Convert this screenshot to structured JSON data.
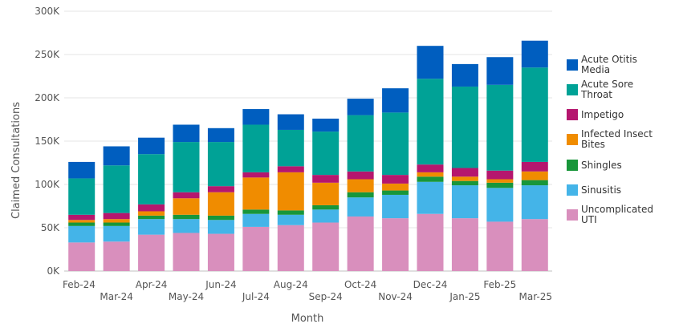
{
  "chart_data": {
    "type": "bar",
    "stacked": true,
    "xlabel": "Month",
    "ylabel": "Claimed Consultations",
    "ylim": [
      0,
      300000
    ],
    "yticks": [
      "0K",
      "50K",
      "100K",
      "150K",
      "200K",
      "250K",
      "300K"
    ],
    "grid": true,
    "legend_position": "right",
    "categories": [
      "Feb-24",
      "Mar-24",
      "Apr-24",
      "May-24",
      "Jun-24",
      "Jul-24",
      "Aug-24",
      "Sep-24",
      "Oct-24",
      "Nov-24",
      "Dec-24",
      "Jan-25",
      "Feb-25",
      "Mar-25"
    ],
    "series": [
      {
        "name": "Uncomplicated UTI",
        "color": "#d98fbd",
        "values": [
          33000,
          34000,
          42000,
          44000,
          43000,
          51000,
          53000,
          56000,
          63000,
          61000,
          66000,
          61000,
          57000,
          60000
        ]
      },
      {
        "name": "Sinusitis",
        "color": "#44b4e8",
        "values": [
          19000,
          18000,
          18000,
          16000,
          16000,
          15000,
          12000,
          15000,
          22000,
          27000,
          37000,
          38000,
          39000,
          39000
        ]
      },
      {
        "name": "Shingles",
        "color": "#18963a",
        "values": [
          4000,
          4000,
          4000,
          5000,
          5000,
          5000,
          5000,
          5000,
          6000,
          5000,
          6000,
          5000,
          6000,
          6000
        ]
      },
      {
        "name": "Infected Insect Bites",
        "color": "#f08c00",
        "values": [
          3000,
          4000,
          5000,
          19000,
          27000,
          37000,
          44000,
          26000,
          15000,
          8000,
          5000,
          5000,
          4000,
          10000
        ]
      },
      {
        "name": "Impetigo",
        "color": "#b5166e",
        "values": [
          6000,
          7000,
          8000,
          7000,
          7000,
          6000,
          7000,
          9000,
          9000,
          10000,
          9000,
          10000,
          10000,
          11000
        ]
      },
      {
        "name": "Acute Sore Throat",
        "color": "#00a296",
        "values": [
          42000,
          55000,
          58000,
          58000,
          51000,
          55000,
          42000,
          50000,
          65000,
          72000,
          99000,
          94000,
          99000,
          109000
        ]
      },
      {
        "name": "Acute Otitis Media",
        "color": "#005ebf",
        "values": [
          19000,
          22000,
          19000,
          20000,
          16000,
          18000,
          18000,
          15000,
          19000,
          28000,
          38000,
          26000,
          32000,
          31000
        ]
      }
    ],
    "legend_order": [
      "Acute Otitis Media",
      "Acute Sore Throat",
      "Impetigo",
      "Infected Insect Bites",
      "Shingles",
      "Sinusitis",
      "Uncomplicated UTI"
    ],
    "legend_labels": [
      [
        "Acute Otitis",
        "Media"
      ],
      [
        "Acute Sore",
        "Throat"
      ],
      [
        "Impetigo"
      ],
      [
        "Infected Insect",
        "Bites"
      ],
      [
        "Shingles"
      ],
      [
        "Sinusitis"
      ],
      [
        "Uncomplicated",
        "UTI"
      ]
    ]
  }
}
